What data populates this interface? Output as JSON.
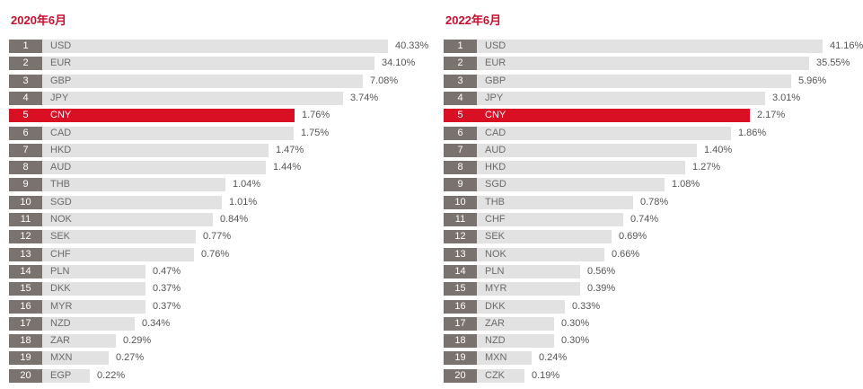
{
  "chart_data": [
    {
      "type": "bar",
      "title": "2020年6月",
      "highlight": "CNY",
      "highlight_color": "#d90f24",
      "bar_color": "#e2e2e2",
      "rank_color": "#7a726e",
      "title_color": "#c8102e",
      "ranks": [
        1,
        2,
        3,
        4,
        5,
        6,
        7,
        8,
        9,
        10,
        11,
        12,
        13,
        14,
        15,
        16,
        17,
        18,
        19,
        20
      ],
      "categories": [
        "USD",
        "EUR",
        "GBP",
        "JPY",
        "CNY",
        "CAD",
        "HKD",
        "AUD",
        "THB",
        "SGD",
        "NOK",
        "SEK",
        "CHF",
        "PLN",
        "DKK",
        "MYR",
        "NZD",
        "ZAR",
        "MXN",
        "EGP"
      ],
      "values": [
        40.33,
        34.1,
        7.08,
        3.74,
        1.76,
        1.75,
        1.47,
        1.44,
        1.04,
        1.01,
        0.84,
        0.77,
        0.76,
        0.47,
        0.37,
        0.37,
        0.34,
        0.29,
        0.27,
        0.22
      ],
      "labels": [
        "40.33%",
        "34.10%",
        "7.08%",
        "3.74%",
        "1.76%",
        "1.75%",
        "1.47%",
        "1.44%",
        "1.04%",
        "1.01%",
        "0.84%",
        "0.77%",
        "0.76%",
        "0.47%",
        "0.37%",
        "0.37%",
        "0.34%",
        "0.29%",
        "0.27%",
        "0.22%"
      ]
    },
    {
      "type": "bar",
      "title": "2022年6月",
      "highlight": "CNY",
      "highlight_color": "#d90f24",
      "bar_color": "#e2e2e2",
      "rank_color": "#7a726e",
      "title_color": "#c8102e",
      "ranks": [
        1,
        2,
        3,
        4,
        5,
        6,
        7,
        8,
        9,
        10,
        11,
        12,
        13,
        14,
        15,
        16,
        17,
        18,
        19,
        20
      ],
      "categories": [
        "USD",
        "EUR",
        "GBP",
        "JPY",
        "CNY",
        "CAD",
        "AUD",
        "HKD",
        "SGD",
        "THB",
        "CHF",
        "SEK",
        "NOK",
        "PLN",
        "MYR",
        "DKK",
        "ZAR",
        "NZD",
        "MXN",
        "CZK"
      ],
      "values": [
        41.16,
        35.55,
        5.96,
        3.01,
        2.17,
        1.86,
        1.4,
        1.27,
        1.08,
        0.78,
        0.74,
        0.69,
        0.66,
        0.56,
        0.39,
        0.33,
        0.3,
        0.3,
        0.24,
        0.19
      ],
      "labels": [
        "41.16%",
        "35.55%",
        "5.96%",
        "3.01%",
        "2.17%",
        "1.86%",
        "1.40%",
        "1.27%",
        "1.08%",
        "0.78%",
        "0.74%",
        "0.69%",
        "0.66%",
        "0.56%",
        "0.39%",
        "0.33%",
        "0.30%",
        "0.30%",
        "0.24%",
        "0.19%"
      ]
    }
  ]
}
